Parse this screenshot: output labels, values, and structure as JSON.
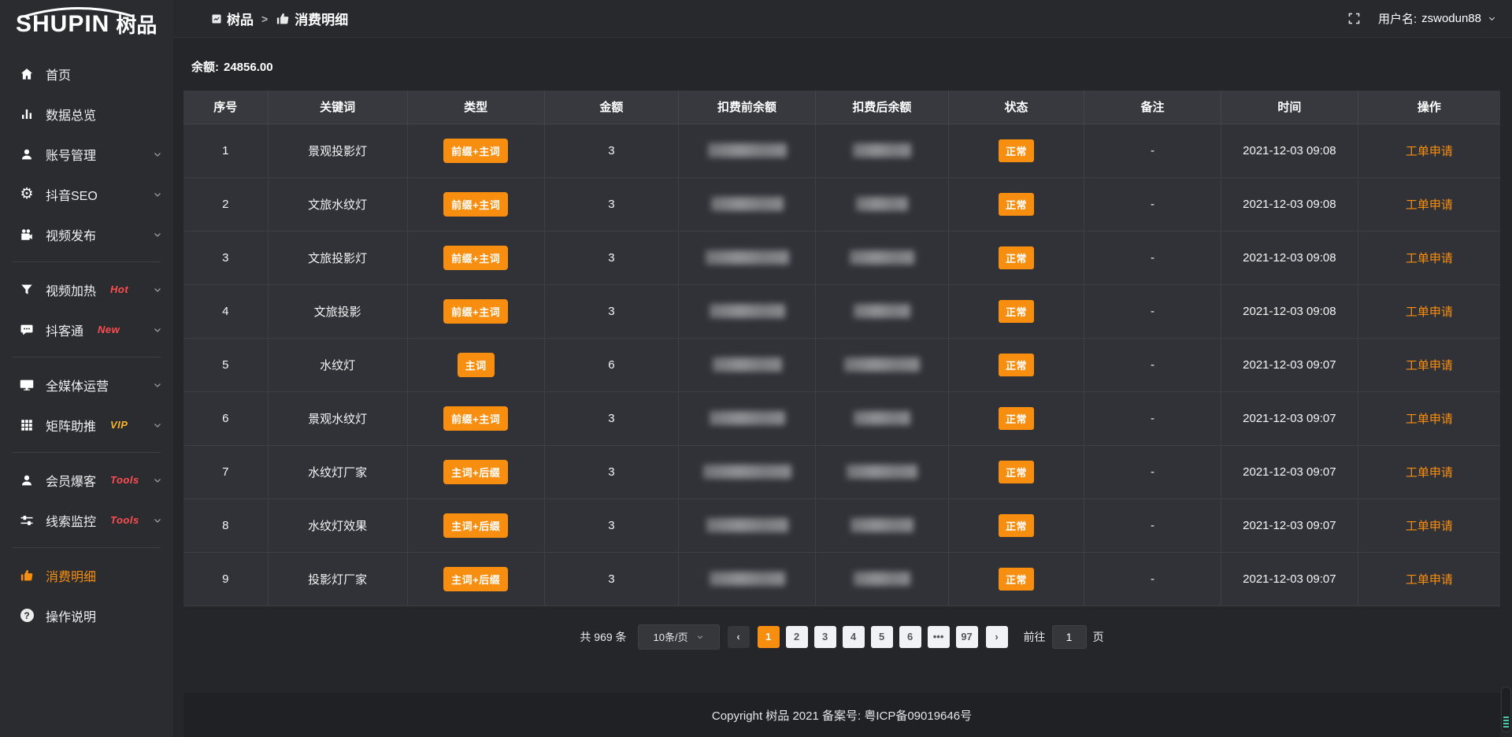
{
  "colors": {
    "accent": "#f78e0f",
    "tag_red": "#ff4d4f",
    "tag_gold": "#f7b32b"
  },
  "sidebar": {
    "logo_en": "SHUPIN",
    "logo_cn": "树品",
    "groups": [
      {
        "items": [
          {
            "id": "home",
            "icon": "home-icon",
            "label": "首页"
          },
          {
            "id": "data-overview",
            "icon": "bar-chart-icon",
            "label": "数据总览"
          },
          {
            "id": "account",
            "icon": "user-icon",
            "label": "账号管理",
            "chevron": true
          },
          {
            "id": "douyin-seo",
            "icon": "gear-icon",
            "label": "抖音SEO",
            "chevron": true
          },
          {
            "id": "video-publish",
            "icon": "video-camera-icon",
            "label": "视频发布",
            "chevron": true
          }
        ]
      },
      {
        "items": [
          {
            "id": "video-heat",
            "icon": "funnel-icon",
            "label": "视频加热",
            "tag": "Hot",
            "tag_color": "#ff4d4f",
            "chevron": true
          },
          {
            "id": "douketong",
            "icon": "chat-icon",
            "label": "抖客通",
            "tag": "New",
            "tag_color": "#ff4d4f",
            "chevron": true
          }
        ]
      },
      {
        "items": [
          {
            "id": "media-ops",
            "icon": "monitor-icon",
            "label": "全媒体运营",
            "chevron": true
          },
          {
            "id": "matrix-boost",
            "icon": "grid-icon",
            "label": "矩阵助推",
            "tag": "VIP",
            "tag_color": "#f7b32b",
            "chevron": true
          }
        ]
      },
      {
        "items": [
          {
            "id": "member-burst",
            "icon": "member-icon",
            "label": "会员爆客",
            "tag": "Tools",
            "tag_color": "#ff4d4f",
            "chevron": true
          },
          {
            "id": "clue-monitor",
            "icon": "sliders-icon",
            "label": "线索监控",
            "tag": "Tools",
            "tag_color": "#ff4d4f",
            "chevron": true
          }
        ]
      },
      {
        "items": [
          {
            "id": "consume-detail",
            "icon": "consume-icon",
            "label": "消费明细",
            "active": true
          },
          {
            "id": "help",
            "icon": "question-icon",
            "label": "操作说明"
          }
        ]
      }
    ]
  },
  "topbar": {
    "breadcrumb": [
      {
        "icon": "app-icon",
        "label": "树品"
      },
      {
        "icon": "consume-icon",
        "label": "消费明细"
      }
    ],
    "separator": ">",
    "username_label": "用户名:",
    "username": "zswodun88"
  },
  "balance": {
    "label": "余额:",
    "value": "24856.00"
  },
  "table": {
    "columns": [
      "序号",
      "关键词",
      "类型",
      "金额",
      "扣费前余额",
      "扣费后余额",
      "状态",
      "备注",
      "时间",
      "操作"
    ],
    "redacted_columns": [
      "扣费前余额",
      "扣费后余额"
    ],
    "rows": [
      {
        "index": "1",
        "keyword": "景观投影灯",
        "type": "前缀+主词",
        "amount": "3",
        "status": "正常",
        "remark": "-",
        "time": "2021-12-03 09:08",
        "action": "工单申请"
      },
      {
        "index": "2",
        "keyword": "文旅水纹灯",
        "type": "前缀+主词",
        "amount": "3",
        "status": "正常",
        "remark": "-",
        "time": "2021-12-03 09:08",
        "action": "工单申请"
      },
      {
        "index": "3",
        "keyword": "文旅投影灯",
        "type": "前缀+主词",
        "amount": "3",
        "status": "正常",
        "remark": "-",
        "time": "2021-12-03 09:08",
        "action": "工单申请"
      },
      {
        "index": "4",
        "keyword": "文旅投影",
        "type": "前缀+主词",
        "amount": "3",
        "status": "正常",
        "remark": "-",
        "time": "2021-12-03 09:08",
        "action": "工单申请"
      },
      {
        "index": "5",
        "keyword": "水纹灯",
        "type": "主词",
        "amount": "6",
        "status": "正常",
        "remark": "-",
        "time": "2021-12-03 09:07",
        "action": "工单申请"
      },
      {
        "index": "6",
        "keyword": "景观水纹灯",
        "type": "前缀+主词",
        "amount": "3",
        "status": "正常",
        "remark": "-",
        "time": "2021-12-03 09:07",
        "action": "工单申请"
      },
      {
        "index": "7",
        "keyword": "水纹灯厂家",
        "type": "主词+后缀",
        "amount": "3",
        "status": "正常",
        "remark": "-",
        "time": "2021-12-03 09:07",
        "action": "工单申请"
      },
      {
        "index": "8",
        "keyword": "水纹灯效果",
        "type": "主词+后缀",
        "amount": "3",
        "status": "正常",
        "remark": "-",
        "time": "2021-12-03 09:07",
        "action": "工单申请"
      },
      {
        "index": "9",
        "keyword": "投影灯厂家",
        "type": "主词+后缀",
        "amount": "3",
        "status": "正常",
        "remark": "-",
        "time": "2021-12-03 09:07",
        "action": "工单申请"
      }
    ]
  },
  "pagination": {
    "total_text": "共 969 条",
    "page_size_text": "10条/页",
    "prev_icon": "‹",
    "next_icon": "›",
    "pages": [
      "1",
      "2",
      "3",
      "4",
      "5",
      "6",
      "•••",
      "97"
    ],
    "active_page": "1",
    "jump_prefix": "前往",
    "jump_value": "1",
    "jump_suffix": "页"
  },
  "footer": {
    "copyright": "Copyright 树品 2021 备案号: 粤ICP备09019646号"
  }
}
